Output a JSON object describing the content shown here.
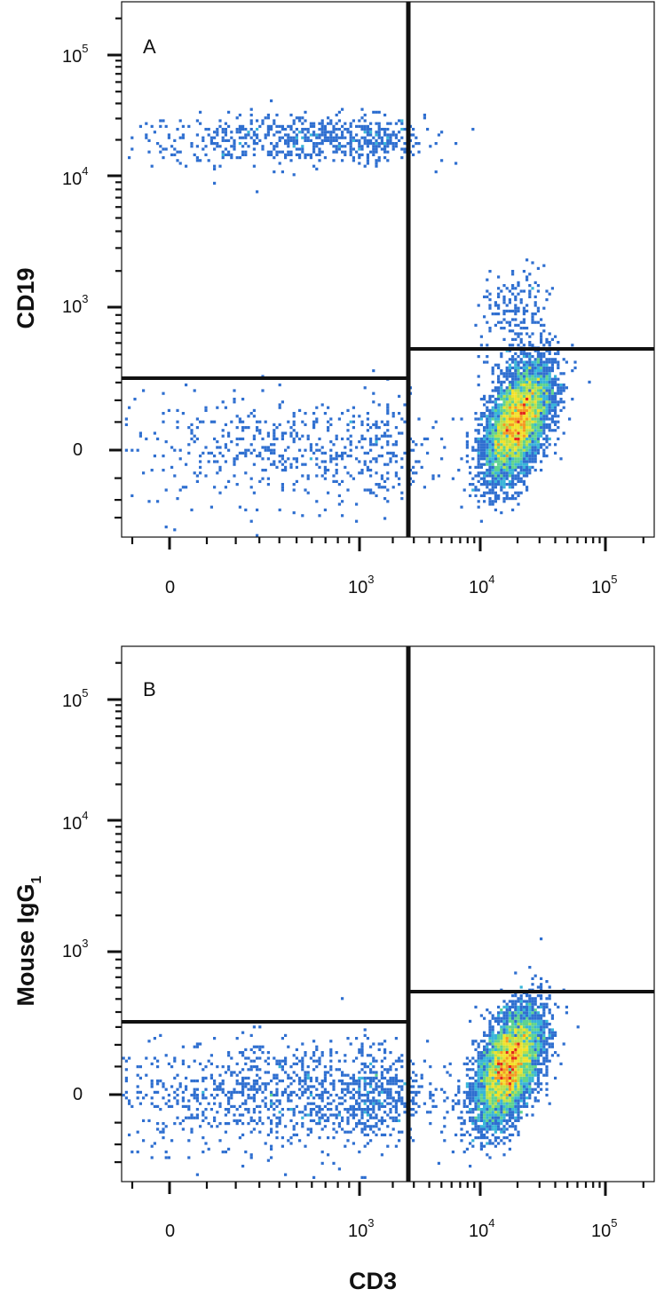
{
  "chart_data": [
    {
      "type": "scatter",
      "panel_label": "A",
      "xlabel": "",
      "ylabel": "CD19",
      "x_scale": "biexponential",
      "y_scale": "biexponential",
      "x_ticks": [
        {
          "base": "0",
          "exp": ""
        },
        {
          "base": "10",
          "exp": "3"
        },
        {
          "base": "10",
          "exp": "4"
        },
        {
          "base": "10",
          "exp": "5"
        }
      ],
      "y_ticks": [
        {
          "base": "0",
          "exp": ""
        },
        {
          "base": "10",
          "exp": "3"
        },
        {
          "base": "10",
          "exp": "4"
        },
        {
          "base": "10",
          "exp": "5"
        }
      ],
      "gates": {
        "vertical_x": 2200,
        "left_horizontal_y": 300,
        "right_horizontal_y": 450
      },
      "populations": [
        {
          "quadrant": "upper-left",
          "center": {
            "x": 600,
            "y": 20000
          },
          "events": 700
        },
        {
          "quadrant": "lower-left",
          "center": {
            "x": 550,
            "y": 0
          },
          "events": 600
        },
        {
          "quadrant": "lower-right",
          "center": {
            "x": 20000,
            "y": 100
          },
          "events": 5200
        },
        {
          "quadrant": "upper-right",
          "center": {
            "x": 20000,
            "y": 800
          },
          "events": 220
        }
      ]
    },
    {
      "type": "scatter",
      "panel_label": "B",
      "xlabel": "CD3",
      "ylabel": "Mouse IgG",
      "ylabel_subscript": "1",
      "x_scale": "biexponential",
      "y_scale": "biexponential",
      "x_ticks": [
        {
          "base": "0",
          "exp": ""
        },
        {
          "base": "10",
          "exp": "3"
        },
        {
          "base": "10",
          "exp": "4"
        },
        {
          "base": "10",
          "exp": "5"
        }
      ],
      "y_ticks": [
        {
          "base": "0",
          "exp": ""
        },
        {
          "base": "10",
          "exp": "3"
        },
        {
          "base": "10",
          "exp": "4"
        },
        {
          "base": "10",
          "exp": "5"
        }
      ],
      "gates": {
        "vertical_x": 2200,
        "left_horizontal_y": 300,
        "right_horizontal_y": 450
      },
      "populations": [
        {
          "quadrant": "lower-left",
          "center": {
            "x": 550,
            "y": 0
          },
          "events": 1300
        },
        {
          "quadrant": "lower-right",
          "center": {
            "x": 17000,
            "y": 100
          },
          "events": 5400
        }
      ]
    }
  ],
  "colors": {
    "axis": "#111111",
    "gate": "#111111",
    "density_scale": [
      "#1d3fa0",
      "#2f6fd0",
      "#38b5d8",
      "#5fd38f",
      "#b8e04a",
      "#f2e12c",
      "#f59a22",
      "#e3261e"
    ]
  }
}
